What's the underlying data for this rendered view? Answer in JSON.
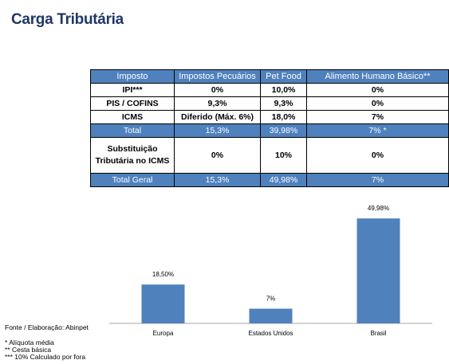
{
  "title": "Carga Tributária",
  "table": {
    "headers": [
      "Imposto",
      "Impostos Pecuários",
      "Pet Food",
      "Alimento Humano Básico**"
    ],
    "rows": [
      [
        "IPI***",
        "0%",
        "10,0%",
        "0%"
      ],
      [
        "PIS / COFINS",
        "9,3%",
        "9,3%",
        "0%"
      ],
      [
        "ICMS",
        "Diferido (Máx. 6%)",
        "18,0%",
        "7%"
      ],
      [
        "Total",
        "15,3%",
        "39,98%",
        "7% *"
      ],
      [
        "Substituição Tributária no ICMS",
        "0%",
        "10%",
        "0%"
      ],
      [
        "Total Geral",
        "15,3%",
        "49,98%",
        "7%"
      ]
    ]
  },
  "chart_data": {
    "type": "bar",
    "categories": [
      "Europa",
      "Estados Unidos",
      "Brasil"
    ],
    "values": [
      18.5,
      7,
      49.98
    ],
    "data_labels": [
      "18,50%",
      "7%",
      "49,98%"
    ],
    "title": "",
    "xlabel": "",
    "ylabel": "",
    "ylim": [
      0,
      55
    ],
    "grid": false,
    "bar_color": "#4f81bd"
  },
  "notes": {
    "source": "Fonte /  Elaboração: Abinpet",
    "footnotes": [
      "* Alíquota média",
      "** Cesta básica",
      "*** 10% Calculado por fora"
    ]
  },
  "colors": {
    "header_bg": "#4f81bd",
    "title": "#1f3864"
  }
}
